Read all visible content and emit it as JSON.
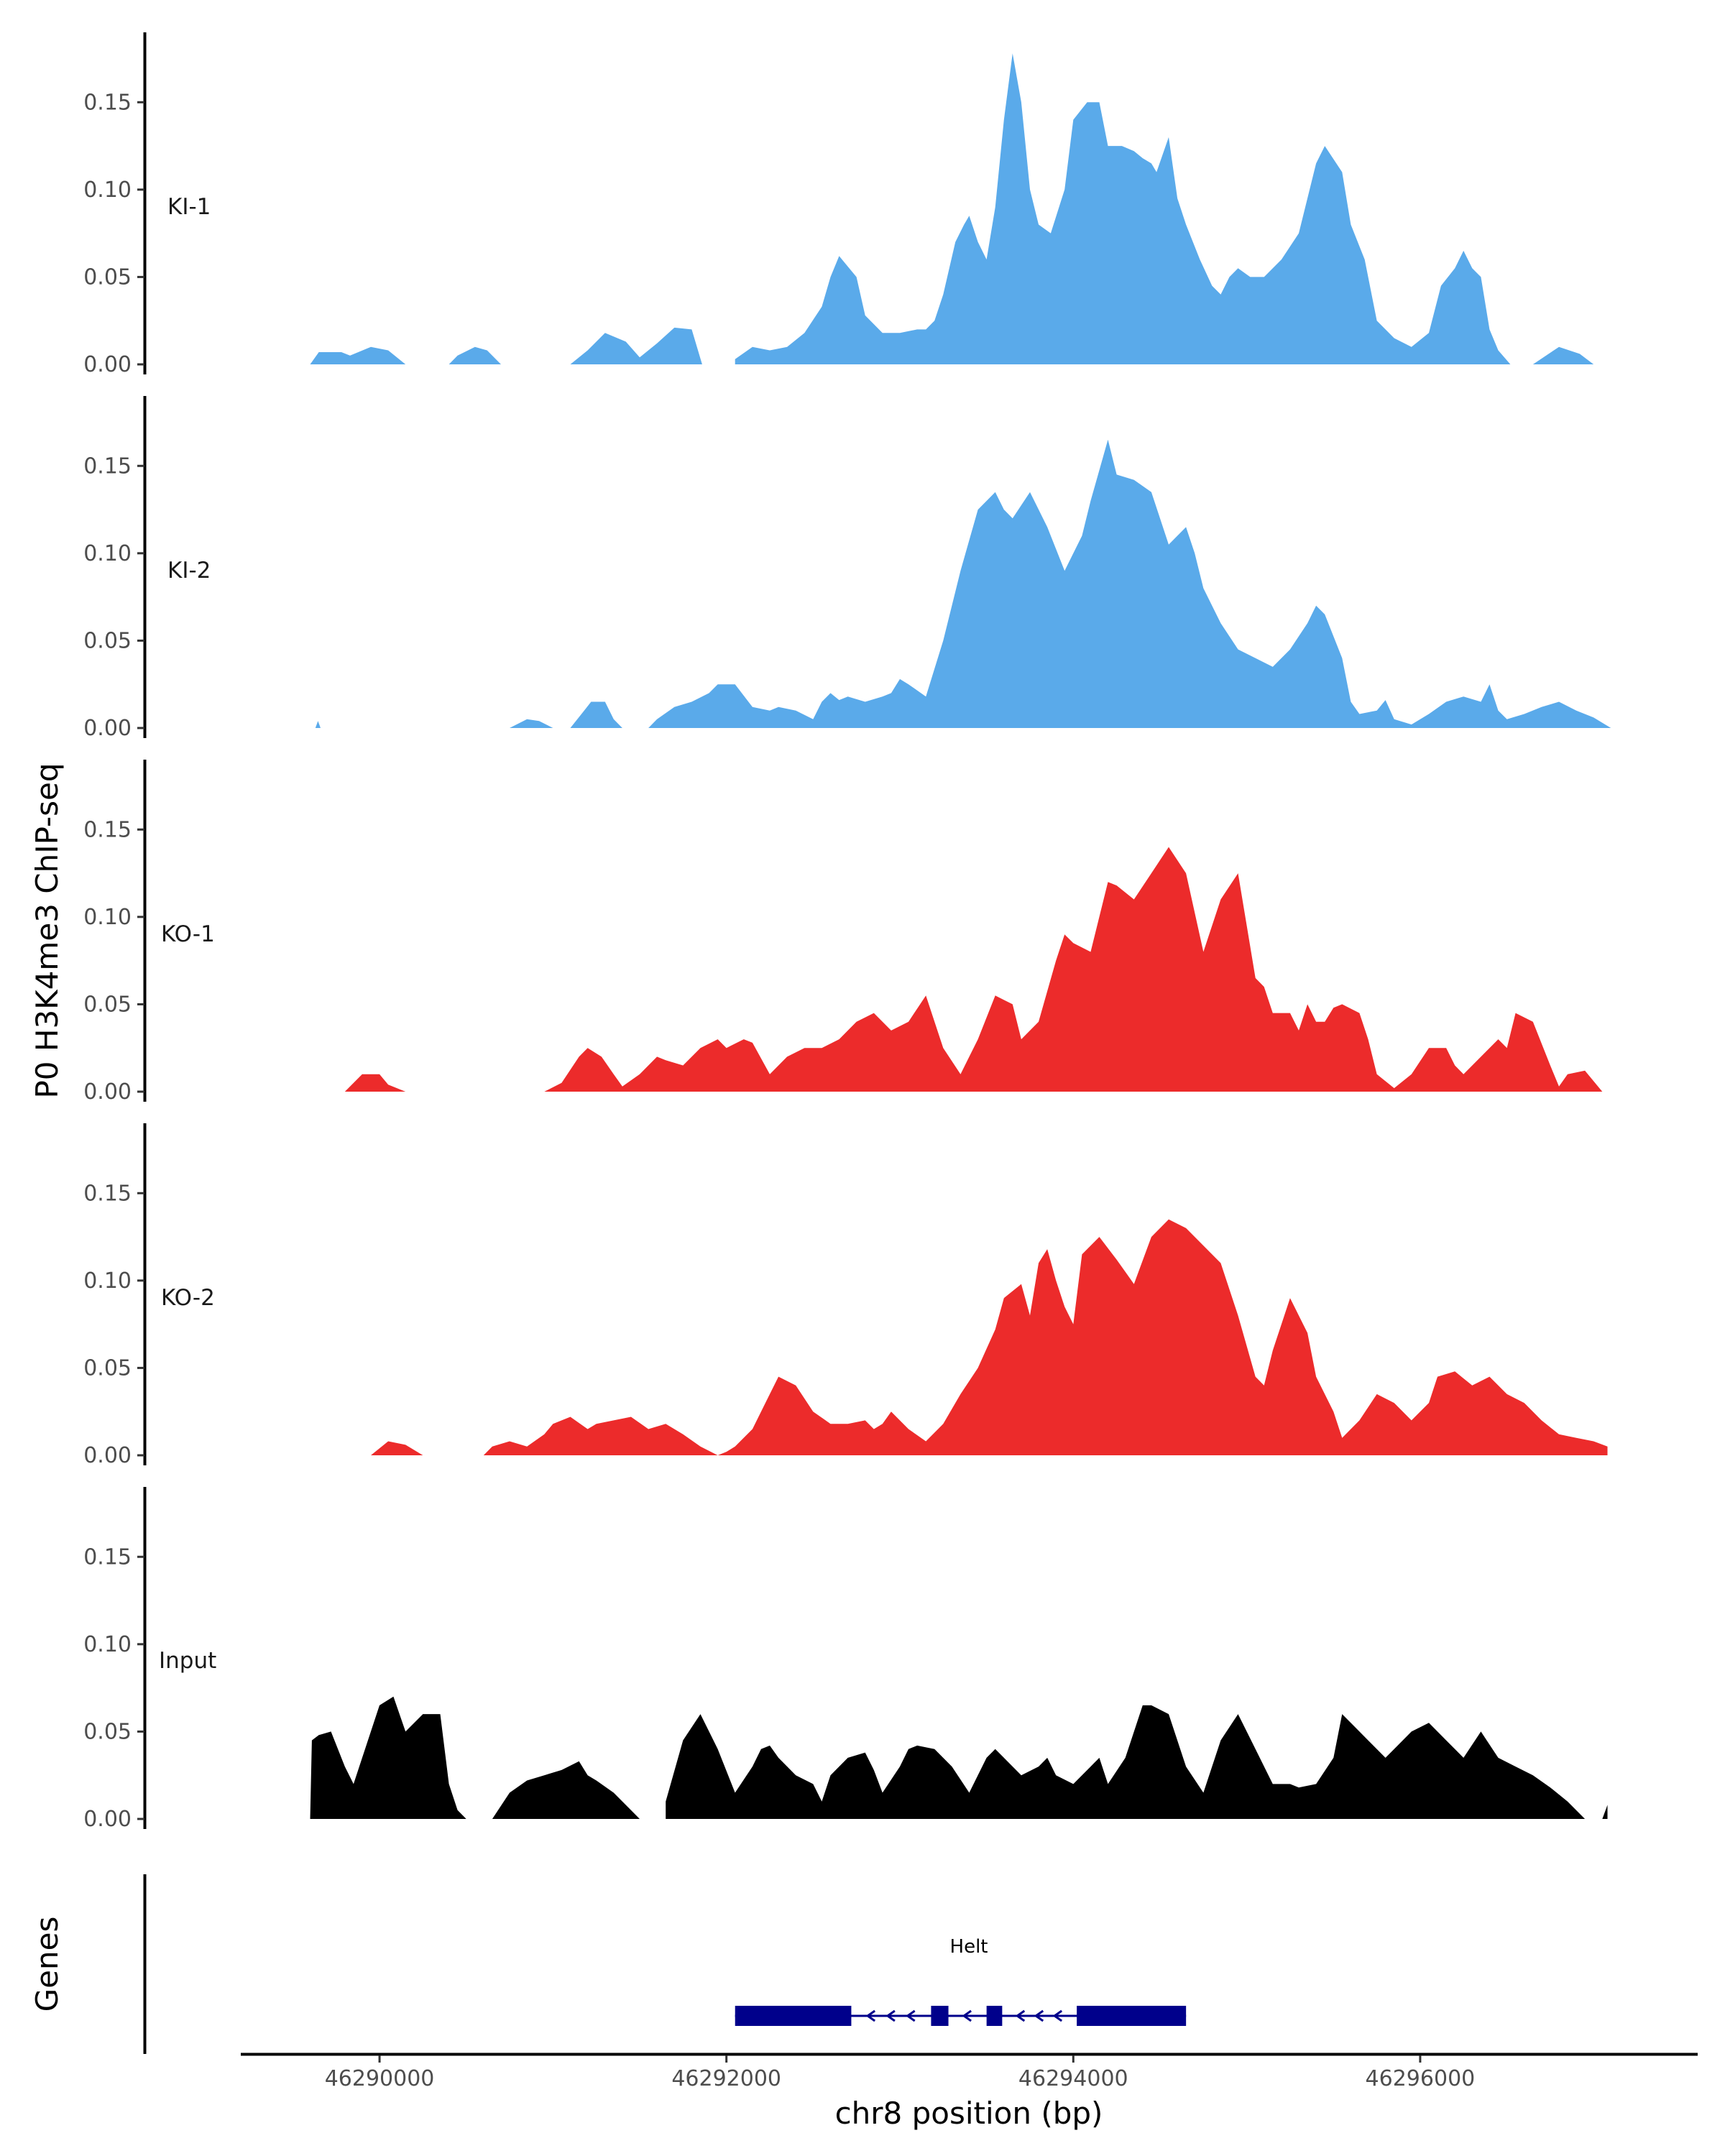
{
  "chart_data": {
    "type": "area",
    "ylabel": "P0 H3K4me3 ChIP-seq",
    "xlabel": "chr8 position (bp)",
    "genes_label": "Genes",
    "ylim": [
      0,
      0.19
    ],
    "xlim": [
      46289200,
      46297600
    ],
    "y_ticks": [
      0.0,
      0.05,
      0.1,
      0.15
    ],
    "y_tick_labels": [
      "0.00",
      "0.05",
      "0.10",
      "0.15"
    ],
    "x_ticks": [
      46290000,
      46292000,
      46294000,
      46296000
    ],
    "x_tick_labels": [
      "46290000",
      "46292000",
      "46294000",
      "46296000"
    ],
    "colors": {
      "KI": "#5aaaea",
      "KO": "#ec2b2b",
      "Input": "#000000",
      "gene": "#00008b"
    },
    "tracks": [
      {
        "name": "KI-1",
        "color": "#5aaaea",
        "x": [
          46289600,
          46289650,
          46289780,
          46289830,
          46289950,
          46290050,
          46290150,
          46290250,
          46290300,
          46290400,
          46290450,
          46290550,
          46290620,
          46290700,
          46290750,
          46291100,
          46291200,
          46291300,
          46291420,
          46291500,
          46291600,
          46291700,
          46291800,
          46291860,
          46292000,
          46292050,
          46292150,
          46292250,
          46292350,
          46292400,
          46292450,
          46292550,
          46292600,
          46292650,
          46292750,
          46292800,
          46292900,
          46293000,
          46293100,
          46293150,
          46293200,
          46293250,
          46293320,
          46293370,
          46293400,
          46293450,
          46293500,
          46293550,
          46293600,
          46293650,
          46293700,
          46293750,
          46293800,
          46293870,
          46293950,
          46294000,
          46294080,
          46294150,
          46294200,
          46294280,
          46294350,
          46294400,
          46294450,
          46294480,
          46294550,
          46294600,
          46294650,
          46294730,
          46294800,
          46294850,
          46294900,
          46294950,
          46295020,
          46295100,
          46295150,
          46295200,
          46295300,
          46295400,
          46295450,
          46295550,
          46295600,
          46295680,
          46295750,
          46295850,
          46295950,
          46296050,
          46296120,
          46296200,
          46296250,
          46296300,
          46296350,
          46296400,
          46296450,
          46296520,
          46296600,
          46296650,
          46296800,
          46296920,
          46297000,
          46297080
        ],
        "y": [
          0.0,
          0.007,
          0.007,
          0.005,
          0.01,
          0.008,
          0.0,
          null,
          null,
          0.0,
          0.005,
          0.01,
          0.008,
          0.0,
          null,
          0.0,
          0.008,
          0.018,
          0.013,
          0.004,
          0.012,
          0.021,
          0.02,
          0.0,
          null,
          0.003,
          0.01,
          0.008,
          0.01,
          0.014,
          0.018,
          0.033,
          0.05,
          0.062,
          0.05,
          0.028,
          0.018,
          0.018,
          0.02,
          0.02,
          0.025,
          0.04,
          0.07,
          0.08,
          0.085,
          0.07,
          0.06,
          0.09,
          0.14,
          0.178,
          0.15,
          0.1,
          0.08,
          0.075,
          0.1,
          0.14,
          0.15,
          0.15,
          0.125,
          0.125,
          0.122,
          0.118,
          0.115,
          0.11,
          0.13,
          0.095,
          0.08,
          0.06,
          0.045,
          0.04,
          0.05,
          0.055,
          0.05,
          0.05,
          0.055,
          0.06,
          0.075,
          0.115,
          0.125,
          0.11,
          0.08,
          0.06,
          0.025,
          0.015,
          0.01,
          0.018,
          0.045,
          0.055,
          0.065,
          0.055,
          0.05,
          0.02,
          0.008,
          0.0,
          null,
          0.0,
          0.01,
          0.006,
          0.0,
          null
        ]
      },
      {
        "name": "KI-2",
        "color": "#5aaaea",
        "x": [
          46289630,
          46289645,
          46289660,
          46289900,
          46290750,
          46290850,
          46290920,
          46291000,
          46291050,
          46291100,
          46291180,
          46291220,
          46291300,
          46291350,
          46291400,
          46291480,
          46291550,
          46291600,
          46291700,
          46291800,
          46291900,
          46291950,
          46292050,
          46292150,
          46292250,
          46292300,
          46292400,
          46292500,
          46292550,
          46292600,
          46292650,
          46292700,
          46292800,
          46292900,
          46292950,
          46293000,
          46293050,
          46293150,
          46293250,
          46293350,
          46293450,
          46293550,
          46293600,
          46293650,
          46293750,
          46293850,
          46293950,
          46294050,
          46294100,
          46294200,
          46294250,
          46294350,
          46294450,
          46294550,
          46294600,
          46294650,
          46294700,
          46294750,
          46294850,
          46294950,
          46295050,
          46295150,
          46295250,
          46295350,
          46295400,
          46295450,
          46295550,
          46295600,
          46295650,
          46295750,
          46295800,
          46295850,
          46295950,
          46296050,
          46296150,
          46296250,
          46296350,
          46296400,
          46296450,
          46296500,
          46296600,
          46296700,
          46296800,
          46296900,
          46297000,
          46297100
        ],
        "y": [
          0.0,
          0.004,
          0.0,
          null,
          0.0,
          0.005,
          0.004,
          0.0,
          null,
          0.0,
          0.01,
          0.015,
          0.015,
          0.005,
          0.0,
          null,
          0.0,
          0.005,
          0.012,
          0.015,
          0.02,
          0.025,
          0.025,
          0.012,
          0.01,
          0.012,
          0.01,
          0.005,
          0.015,
          0.02,
          0.016,
          0.018,
          0.015,
          0.018,
          0.02,
          0.028,
          0.025,
          0.018,
          0.05,
          0.09,
          0.125,
          0.135,
          0.125,
          0.12,
          0.135,
          0.115,
          0.09,
          0.11,
          0.13,
          0.165,
          0.145,
          0.142,
          0.135,
          0.105,
          0.11,
          0.115,
          0.1,
          0.08,
          0.06,
          0.045,
          0.04,
          0.035,
          0.045,
          0.06,
          0.07,
          0.065,
          0.04,
          0.015,
          0.008,
          0.01,
          0.016,
          0.005,
          0.002,
          0.008,
          0.015,
          0.018,
          0.015,
          0.025,
          0.01,
          0.005,
          0.008,
          0.012,
          0.015,
          0.01,
          0.006,
          0.0
        ]
      },
      {
        "name": "KO-1",
        "color": "#ec2b2b",
        "x": [
          46289800,
          46289900,
          46290000,
          46290050,
          46290150,
          46290200,
          46290950,
          46291050,
          46291150,
          46291200,
          46291280,
          46291350,
          46291400,
          46291500,
          46291600,
          46291650,
          46291750,
          46291850,
          46291950,
          46292000,
          46292100,
          46292150,
          46292250,
          46292350,
          46292450,
          46292550,
          46292650,
          46292750,
          46292850,
          46292950,
          46293050,
          46293150,
          46293250,
          46293350,
          46293400,
          46293450,
          46293550,
          46293650,
          46293700,
          46293800,
          46293900,
          46293950,
          46294000,
          46294100,
          46294200,
          46294250,
          46294350,
          46294450,
          46294550,
          46294650,
          46294750,
          46294850,
          46294950,
          46295050,
          46295100,
          46295150,
          46295250,
          46295300,
          46295350,
          46295400,
          46295450,
          46295500,
          46295550,
          46295650,
          46295700,
          46295750,
          46295850,
          46295950,
          46296050,
          46296150,
          46296200,
          46296250,
          46296350,
          46296450,
          46296500,
          46296550,
          46296650,
          46296750,
          46296800,
          46296850,
          46296950,
          46297050
        ],
        "y": [
          0.0,
          0.01,
          0.01,
          0.004,
          0.0,
          null,
          0.0,
          0.005,
          0.02,
          0.025,
          0.02,
          0.01,
          0.003,
          0.01,
          0.02,
          0.018,
          0.015,
          0.025,
          0.03,
          0.025,
          0.03,
          0.028,
          0.01,
          0.02,
          0.025,
          0.025,
          0.03,
          0.04,
          0.045,
          0.035,
          0.04,
          0.055,
          0.025,
          0.01,
          0.02,
          0.03,
          0.055,
          0.05,
          0.03,
          0.04,
          0.075,
          0.09,
          0.085,
          0.08,
          0.12,
          0.118,
          0.11,
          0.125,
          0.14,
          0.125,
          0.08,
          0.11,
          0.125,
          0.065,
          0.06,
          0.045,
          0.045,
          0.035,
          0.05,
          0.04,
          0.04,
          0.048,
          0.05,
          0.045,
          0.03,
          0.01,
          0.002,
          0.01,
          0.025,
          0.025,
          0.015,
          0.01,
          0.02,
          0.03,
          0.025,
          0.045,
          0.04,
          0.015,
          0.003,
          0.01,
          0.012,
          0.0
        ]
      },
      {
        "name": "KO-2",
        "color": "#ec2b2b",
        "x": [
          46289950,
          46290050,
          46290150,
          46290250,
          46290300,
          46290600,
          46290650,
          46290750,
          46290850,
          46290950,
          46291000,
          46291100,
          46291200,
          46291250,
          46291350,
          46291450,
          46291550,
          46291650,
          46291750,
          46291850,
          46291950,
          46292000,
          46292050,
          46292150,
          46292200,
          46292250,
          46292300,
          46292400,
          46292500,
          46292600,
          46292700,
          46292800,
          46292850,
          46292900,
          46292950,
          46293050,
          46293150,
          46293250,
          46293350,
          46293450,
          46293550,
          46293600,
          46293700,
          46293750,
          46293800,
          46293850,
          46293900,
          46293950,
          46294000,
          46294050,
          46294150,
          46294250,
          46294300,
          46294350,
          46294450,
          46294550,
          46294650,
          46294750,
          46294850,
          46294950,
          46295050,
          46295100,
          46295150,
          46295250,
          46295350,
          46295400,
          46295500,
          46295550,
          46295650,
          46295750,
          46295850,
          46295950,
          46296050,
          46296100,
          46296200,
          46296300,
          46296400,
          46296500,
          46296600,
          46296700,
          46296800,
          46296900,
          46297000,
          46297080
        ],
        "y": [
          0.0,
          0.008,
          0.006,
          0.0,
          null,
          0.0,
          0.005,
          0.008,
          0.005,
          0.012,
          0.018,
          0.022,
          0.015,
          0.018,
          0.02,
          0.022,
          0.015,
          0.018,
          0.012,
          0.005,
          0.0,
          0.002,
          0.005,
          0.015,
          0.025,
          0.035,
          0.045,
          0.04,
          0.025,
          0.018,
          0.018,
          0.02,
          0.015,
          0.018,
          0.025,
          0.015,
          0.008,
          0.018,
          0.035,
          0.05,
          0.072,
          0.09,
          0.098,
          0.08,
          0.11,
          0.118,
          0.1,
          0.085,
          0.075,
          0.115,
          0.125,
          0.112,
          0.105,
          0.098,
          0.125,
          0.135,
          0.13,
          0.12,
          0.11,
          0.08,
          0.045,
          0.04,
          0.06,
          0.09,
          0.07,
          0.045,
          0.025,
          0.01,
          0.02,
          0.035,
          0.03,
          0.02,
          0.03,
          0.045,
          0.048,
          0.04,
          0.045,
          0.035,
          0.03,
          0.02,
          0.012,
          0.01,
          0.008,
          0.005
        ]
      },
      {
        "name": "Input",
        "color": "#000000",
        "x": [
          46289600,
          46289610,
          46289650,
          46289720,
          46289800,
          46289850,
          46289900,
          46290000,
          46290080,
          46290150,
          46290250,
          46290350,
          46290400,
          46290450,
          46290500,
          46290550,
          46290650,
          46290750,
          46290850,
          46290950,
          46291050,
          46291150,
          46291200,
          46291250,
          46291350,
          46291450,
          46291500,
          46291550,
          46291650,
          46291750,
          46291850,
          46291950,
          46292050,
          46292150,
          46292200,
          46292250,
          46292300,
          46292400,
          46292500,
          46292550,
          46292600,
          46292700,
          46292800,
          46292850,
          46292900,
          46293000,
          46293050,
          46293100,
          46293200,
          46293300,
          46293400,
          46293500,
          46293550,
          46293600,
          46293700,
          46293800,
          46293850,
          46293900,
          46294000,
          46294100,
          46294150,
          46294200,
          46294300,
          46294400,
          46294450,
          46294550,
          46294650,
          46294750,
          46294850,
          46294950,
          46295050,
          46295150,
          46295250,
          46295300,
          46295400,
          46295500,
          46295550,
          46295600,
          46295700,
          46295800,
          46295850,
          46295950,
          46296050,
          46296150,
          46296200,
          46296250,
          46296350,
          46296450,
          46296550,
          46296650,
          46296750,
          46296850,
          46296950,
          46297000,
          46297050,
          46297080
        ],
        "y": [
          0.0,
          0.045,
          0.048,
          0.05,
          0.03,
          0.02,
          0.035,
          0.065,
          0.07,
          0.05,
          0.06,
          0.06,
          0.02,
          0.005,
          0.0,
          null,
          0.0,
          0.015,
          0.022,
          0.025,
          0.028,
          0.033,
          0.025,
          0.022,
          0.015,
          0.005,
          0.0,
          null,
          0.01,
          0.045,
          0.06,
          0.04,
          0.015,
          0.03,
          0.04,
          0.042,
          0.035,
          0.025,
          0.02,
          0.01,
          0.025,
          0.035,
          0.038,
          0.028,
          0.015,
          0.03,
          0.04,
          0.042,
          0.04,
          0.03,
          0.015,
          0.035,
          0.04,
          0.035,
          0.025,
          0.03,
          0.035,
          0.025,
          0.02,
          0.03,
          0.035,
          0.02,
          0.035,
          0.065,
          0.065,
          0.06,
          0.03,
          0.015,
          0.045,
          0.06,
          0.04,
          0.02,
          0.02,
          0.018,
          0.02,
          0.035,
          0.06,
          0.055,
          0.045,
          0.035,
          0.04,
          0.05,
          0.055,
          0.045,
          0.04,
          0.035,
          0.05,
          0.035,
          0.03,
          0.025,
          0.018,
          0.01,
          0.0,
          null,
          0.0,
          0.008
        ]
      }
    ],
    "gene_track": {
      "name": "Helt",
      "start": 46292050,
      "end": 46294650,
      "strand": "-",
      "exons": [
        [
          46292050,
          46292720
        ],
        [
          46293180,
          46293280
        ],
        [
          46293500,
          46293590
        ],
        [
          46294020,
          46294650
        ]
      ]
    }
  }
}
